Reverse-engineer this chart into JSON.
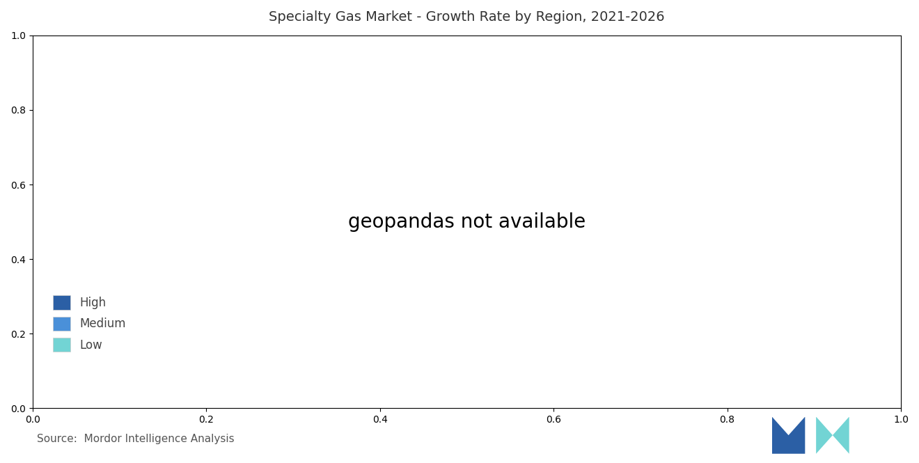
{
  "title": "Specialty Gas Market - Growth Rate by Region, 2021-2026",
  "legend_labels": [
    "High",
    "Medium",
    "Low"
  ],
  "colors": {
    "high": "#2B5FA5",
    "medium": "#4A90D9",
    "low": "#72D4D4",
    "greenland": "#9BAAB8",
    "ocean": "#FFFFFF",
    "background": "#FFFFFF",
    "border": "#FFFFFF"
  },
  "source_text": "Source:  Mordor Intelligence Analysis",
  "title_fontsize": 14,
  "legend_fontsize": 12,
  "source_fontsize": 11
}
